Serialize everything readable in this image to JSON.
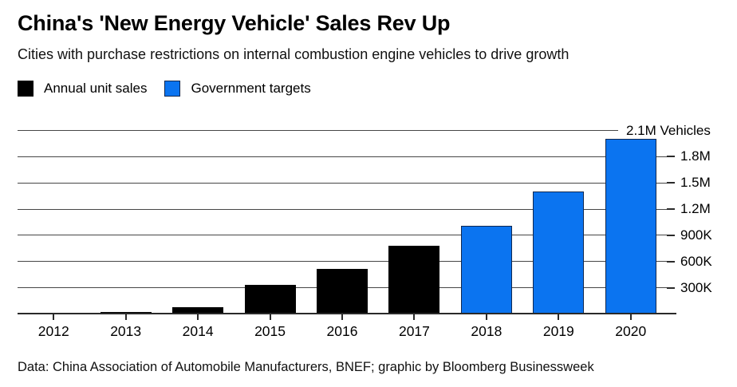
{
  "header": {
    "title": "China's 'New Energy Vehicle' Sales Rev Up",
    "subtitle": "Cities with purchase restrictions on internal combustion engine vehicles to drive growth"
  },
  "legend": [
    {
      "label": "Annual unit sales",
      "color": "#000000",
      "border": "#000000"
    },
    {
      "label": "Government targets",
      "color": "#0b74f0",
      "border": "#102850"
    }
  ],
  "colors": {
    "sales_fill": "#000000",
    "targets_fill": "#0b74f0",
    "targets_border": "#102850",
    "gridline": "#464646",
    "axis": "#2a2a2a",
    "background": "#ffffff"
  },
  "chart_data": {
    "type": "bar",
    "title": "China's 'New Energy Vehicle' Sales Rev Up",
    "subtitle": "Cities with purchase restrictions on internal combustion engine vehicles to drive growth",
    "xlabel": "",
    "ylabel": "Vehicles",
    "categories": [
      "2012",
      "2013",
      "2014",
      "2015",
      "2016",
      "2017",
      "2018",
      "2019",
      "2020"
    ],
    "series": [
      {
        "name": "Annual unit sales",
        "color": "#000000",
        "border": "#000000",
        "values": [
          13000,
          18000,
          75000,
          331000,
          507000,
          777000,
          null,
          null,
          null
        ]
      },
      {
        "name": "Government targets",
        "color": "#0b74f0",
        "border": "#102850",
        "values": [
          null,
          null,
          null,
          null,
          null,
          null,
          1000000,
          1400000,
          2000000
        ]
      }
    ],
    "ylim": [
      0,
      2100000
    ],
    "yticks": [
      {
        "value": 2100000,
        "label": "2.1M Vehicles"
      },
      {
        "value": 1800000,
        "label": "1.8M"
      },
      {
        "value": 1500000,
        "label": "1.5M"
      },
      {
        "value": 1200000,
        "label": "1.2M"
      },
      {
        "value": 900000,
        "label": "900K"
      },
      {
        "value": 600000,
        "label": "600K"
      },
      {
        "value": 300000,
        "label": "300K"
      }
    ],
    "grid": true,
    "legend_position": "top-left"
  },
  "footer": {
    "source": "Data: China Association of Automobile Manufacturers, BNEF; graphic by Bloomberg Businessweek"
  }
}
